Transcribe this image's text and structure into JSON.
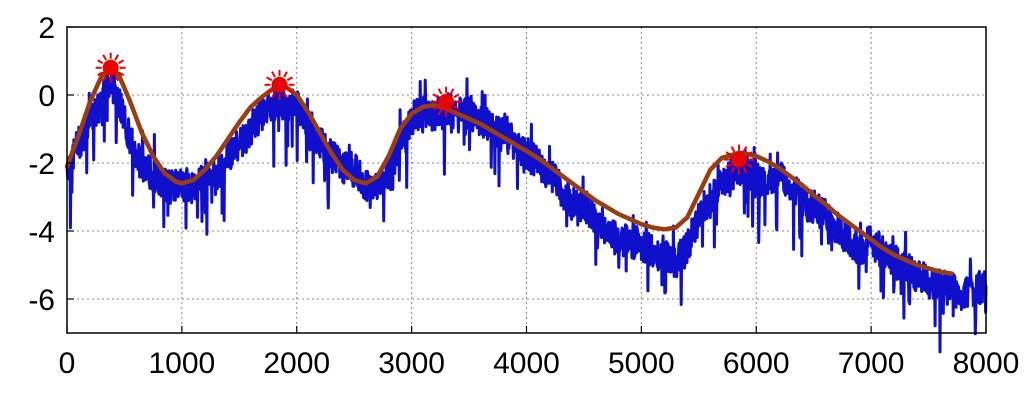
{
  "chart_data": {
    "type": "line",
    "title": "",
    "xlabel": "",
    "ylabel": "",
    "xlim": [
      0,
      8000
    ],
    "ylim": [
      -7,
      2
    ],
    "grid": true,
    "x_ticks": [
      0,
      1000,
      2000,
      3000,
      4000,
      5000,
      6000,
      7000,
      8000
    ],
    "x_tick_labels": [
      "0",
      "1000",
      "2000",
      "3000",
      "4000",
      "5000",
      "6000",
      "7000",
      "8000"
    ],
    "y_ticks": [
      2,
      0,
      -2,
      -4,
      -6
    ],
    "y_tick_labels": [
      "2",
      "0",
      "-2",
      "-4",
      "-6"
    ],
    "series": [
      {
        "style": "noisy",
        "color": "#1010cc",
        "x": [
          0,
          120,
          200,
          300,
          350,
          420,
          500,
          600,
          700,
          800,
          900,
          1000,
          1100,
          1200,
          1300,
          1400,
          1500,
          1600,
          1700,
          1800,
          1850,
          1900,
          2000,
          2100,
          2200,
          2300,
          2400,
          2500,
          2600,
          2700,
          2800,
          2900,
          3000,
          3100,
          3200,
          3300,
          3400,
          3500,
          3600,
          3700,
          3800,
          3900,
          4000,
          4100,
          4200,
          4300,
          4400,
          4500,
          4600,
          4700,
          4800,
          4900,
          5000,
          5100,
          5200,
          5300,
          5400,
          5500,
          5600,
          5700,
          5800,
          5900,
          6000,
          6100,
          6200,
          6300,
          6400,
          6500,
          6600,
          6700,
          6800,
          6900,
          7000,
          7100,
          7200,
          7300,
          7400,
          7500,
          7600,
          7700,
          7800,
          7900,
          8000
        ],
        "y": [
          -2.1,
          -1.3,
          -0.8,
          -0.2,
          0.4,
          0.2,
          -0.8,
          -1.8,
          -2.2,
          -2.5,
          -2.7,
          -2.6,
          -2.8,
          -2.3,
          -2.5,
          -1.8,
          -1.4,
          -1.0,
          -0.6,
          -0.3,
          0.0,
          -0.4,
          -0.3,
          -0.9,
          -1.4,
          -1.8,
          -2.1,
          -2.2,
          -2.6,
          -2.7,
          -2.3,
          -1.4,
          -0.7,
          -0.5,
          -0.6,
          -0.4,
          -0.6,
          -0.5,
          -0.7,
          -1.0,
          -1.2,
          -1.4,
          -1.7,
          -2.0,
          -2.3,
          -2.8,
          -3.2,
          -3.2,
          -3.6,
          -4.0,
          -4.2,
          -4.3,
          -4.4,
          -4.6,
          -4.7,
          -4.9,
          -4.5,
          -3.6,
          -3.0,
          -2.5,
          -2.3,
          -2.1,
          -2.5,
          -2.6,
          -2.4,
          -2.6,
          -3.1,
          -3.3,
          -3.5,
          -3.9,
          -4.2,
          -4.5,
          -4.3,
          -4.6,
          -4.9,
          -5.1,
          -5.3,
          -5.5,
          -5.6,
          -5.7,
          -5.9,
          -5.8,
          -5.6
        ]
      },
      {
        "style": "smooth",
        "color": "#9a3d10",
        "x": [
          0,
          100,
          200,
          300,
          380,
          450,
          550,
          650,
          750,
          850,
          950,
          1000,
          1100,
          1200,
          1300,
          1400,
          1500,
          1600,
          1700,
          1800,
          1850,
          1900,
          2000,
          2100,
          2200,
          2300,
          2400,
          2500,
          2600,
          2700,
          2800,
          2900,
          3000,
          3100,
          3200,
          3300,
          3400,
          3500,
          3600,
          3700,
          3800,
          3900,
          4000,
          4100,
          4200,
          4300,
          4400,
          4500,
          4600,
          4700,
          4800,
          4900,
          5000,
          5100,
          5200,
          5300,
          5400,
          5500,
          5600,
          5700,
          5800,
          5850,
          5900,
          6000,
          6100,
          6200,
          6300,
          6400,
          6500,
          6600,
          6700,
          6800,
          6900,
          7000,
          7100,
          7200,
          7300,
          7400,
          7500,
          7600,
          7700
        ],
        "y": [
          -2.1,
          -1.2,
          -0.2,
          0.55,
          0.8,
          0.6,
          -0.2,
          -1.1,
          -1.8,
          -2.3,
          -2.55,
          -2.6,
          -2.5,
          -2.2,
          -1.8,
          -1.3,
          -0.8,
          -0.35,
          -0.05,
          0.2,
          0.3,
          0.25,
          0.0,
          -0.5,
          -1.1,
          -1.7,
          -2.2,
          -2.5,
          -2.6,
          -2.4,
          -1.8,
          -1.0,
          -0.55,
          -0.35,
          -0.3,
          -0.4,
          -0.55,
          -0.7,
          -0.85,
          -1.05,
          -1.25,
          -1.45,
          -1.65,
          -1.85,
          -2.1,
          -2.35,
          -2.6,
          -2.85,
          -3.1,
          -3.3,
          -3.5,
          -3.65,
          -3.8,
          -3.9,
          -3.95,
          -3.9,
          -3.6,
          -2.9,
          -2.2,
          -1.85,
          -1.75,
          -1.7,
          -1.72,
          -1.8,
          -1.95,
          -2.15,
          -2.4,
          -2.65,
          -2.95,
          -3.2,
          -3.5,
          -3.75,
          -4.0,
          -4.25,
          -4.5,
          -4.7,
          -4.85,
          -5.0,
          -5.1,
          -5.2,
          -5.25
        ]
      }
    ],
    "markers": {
      "color": "#ee0000",
      "points": [
        {
          "x": 380,
          "y": 0.8
        },
        {
          "x": 1850,
          "y": 0.3
        },
        {
          "x": 3300,
          "y": -0.2
        },
        {
          "x": 5850,
          "y": -1.9
        }
      ]
    }
  }
}
